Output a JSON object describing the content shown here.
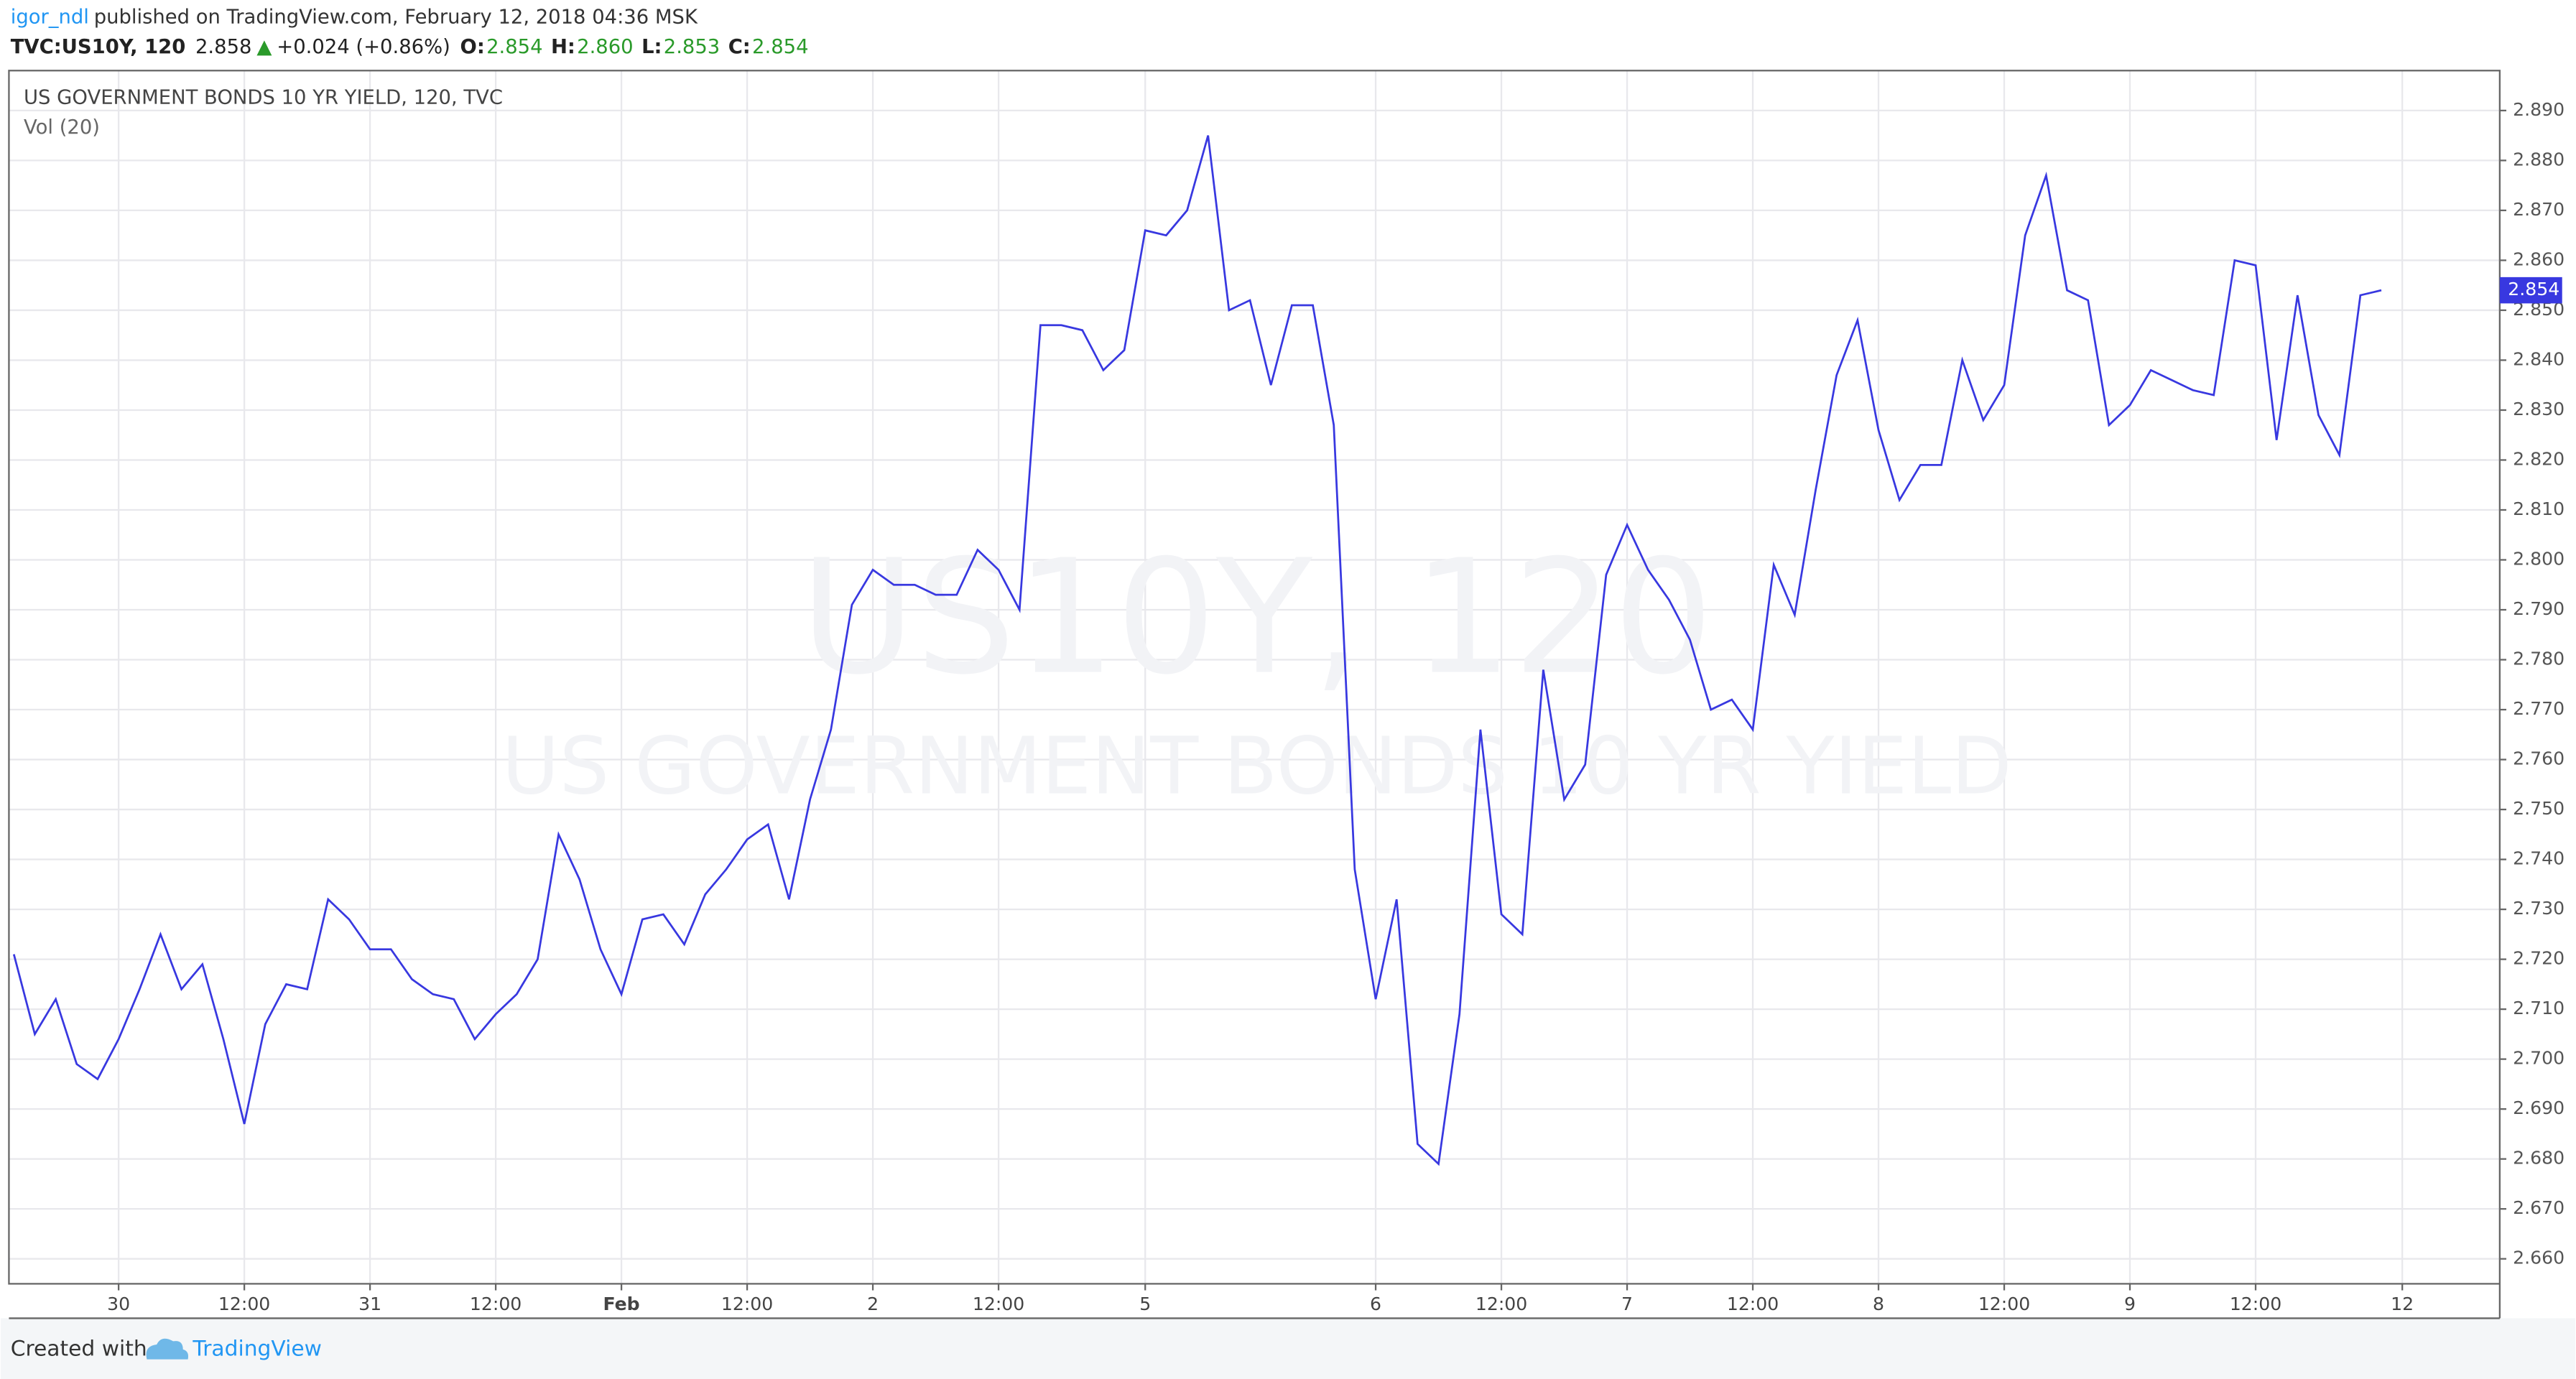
{
  "header": {
    "author": "igor_ndl",
    "published": "published on TradingView.com, February 12, 2018 04:36 MSK",
    "symbol": "TVC:US10Y, 120",
    "last": "2.858",
    "arrow": "▲",
    "change": "+0.024 (+0.86%)",
    "open_label": "O:",
    "open": "2.854",
    "high_label": "H:",
    "high": "2.860",
    "low_label": "L:",
    "low": "2.853",
    "close_label": "C:",
    "close": "2.854"
  },
  "chart_data": {
    "type": "line",
    "indicator": "Vol (20)",
    "watermark": "US10Y, 120",
    "watermark_subtitle": "US GOVERNMENT BONDS 10 YR YIELD",
    "categories": [
      null,
      null,
      null,
      null,
      null,
      "30",
      null,
      null,
      null,
      null,
      null,
      "12:00",
      null,
      null,
      null,
      null,
      null,
      "31",
      null,
      null,
      null,
      null,
      null,
      "12:00",
      null,
      null,
      null,
      null,
      null,
      "Feb",
      null,
      null,
      null,
      null,
      null,
      "12:00",
      null,
      null,
      null,
      null,
      null,
      "2",
      null,
      null,
      null,
      null,
      null,
      "12:00",
      null,
      null,
      null,
      null,
      null,
      null,
      "5",
      null,
      null,
      null,
      null,
      null,
      null,
      null,
      null,
      null,
      null,
      "6",
      null,
      null,
      null,
      null,
      null,
      "12:00",
      null,
      null,
      null,
      null,
      null,
      "7",
      null,
      null,
      null,
      null,
      null,
      "12:00",
      null,
      null,
      null,
      null,
      null,
      "8",
      null,
      null,
      null,
      null,
      null,
      "12:00",
      null,
      null,
      null,
      null,
      null,
      "9",
      null,
      null,
      null,
      null,
      null,
      "12:00",
      null,
      null,
      null,
      null,
      null,
      null,
      "12"
    ],
    "series": [
      {
        "name": "US GOVERNMENT BONDS 10 YR YIELD, 120, TVC",
        "color": "#3838e0",
        "values": [
          2.721,
          2.705,
          2.712,
          2.699,
          2.696,
          2.704,
          2.714,
          2.725,
          2.714,
          2.719,
          2.704,
          2.687,
          2.707,
          2.715,
          2.714,
          2.732,
          2.728,
          2.722,
          2.722,
          2.716,
          2.713,
          2.712,
          2.704,
          2.709,
          2.713,
          2.72,
          2.745,
          2.736,
          2.722,
          2.713,
          2.728,
          2.729,
          2.723,
          2.733,
          2.738,
          2.744,
          2.747,
          2.732,
          2.752,
          2.766,
          2.791,
          2.798,
          2.795,
          2.795,
          2.793,
          2.793,
          2.802,
          2.798,
          2.79,
          2.847,
          2.847,
          2.846,
          2.838,
          2.842,
          2.866,
          2.865,
          2.87,
          2.885,
          2.85,
          2.852,
          2.835,
          2.851,
          2.851,
          2.827,
          2.738,
          2.712,
          2.732,
          2.683,
          2.679,
          2.709,
          2.766,
          2.729,
          2.725,
          2.778,
          2.752,
          2.759,
          2.797,
          2.807,
          2.798,
          2.792,
          2.784,
          2.77,
          2.772,
          2.766,
          2.799,
          2.789,
          2.814,
          2.837,
          2.848,
          2.826,
          2.812,
          2.819,
          2.819,
          2.84,
          2.828,
          2.835,
          2.865,
          2.877,
          2.854,
          2.852,
          2.827,
          2.831,
          2.838,
          2.836,
          2.834,
          2.833,
          2.86,
          2.859,
          2.824,
          2.853,
          2.829,
          2.821,
          2.853,
          2.854,
          null
        ]
      }
    ],
    "ylim": [
      2.655,
      2.898
    ],
    "yticks": [
      {
        "value": 2.66,
        "label": "2.660"
      },
      {
        "value": 2.67,
        "label": "2.670"
      },
      {
        "value": 2.68,
        "label": "2.680"
      },
      {
        "value": 2.69,
        "label": "2.690"
      },
      {
        "value": 2.7,
        "label": "2.700"
      },
      {
        "value": 2.71,
        "label": "2.710"
      },
      {
        "value": 2.72,
        "label": "2.720"
      },
      {
        "value": 2.73,
        "label": "2.730"
      },
      {
        "value": 2.74,
        "label": "2.740"
      },
      {
        "value": 2.75,
        "label": "2.750"
      },
      {
        "value": 2.76,
        "label": "2.760"
      },
      {
        "value": 2.77,
        "label": "2.770"
      },
      {
        "value": 2.78,
        "label": "2.780"
      },
      {
        "value": 2.79,
        "label": "2.790"
      },
      {
        "value": 2.8,
        "label": "2.800"
      },
      {
        "value": 2.81,
        "label": "2.810"
      },
      {
        "value": 2.82,
        "label": "2.820"
      },
      {
        "value": 2.83,
        "label": "2.830"
      },
      {
        "value": 2.84,
        "label": "2.840"
      },
      {
        "value": 2.85,
        "label": "2.850"
      },
      {
        "value": 2.86,
        "label": "2.860"
      },
      {
        "value": 2.87,
        "label": "2.870"
      },
      {
        "value": 2.88,
        "label": "2.880"
      },
      {
        "value": 2.89,
        "label": "2.890"
      }
    ],
    "grid": true
  },
  "footer": {
    "created": "Created with",
    "brand": "TradingView"
  }
}
